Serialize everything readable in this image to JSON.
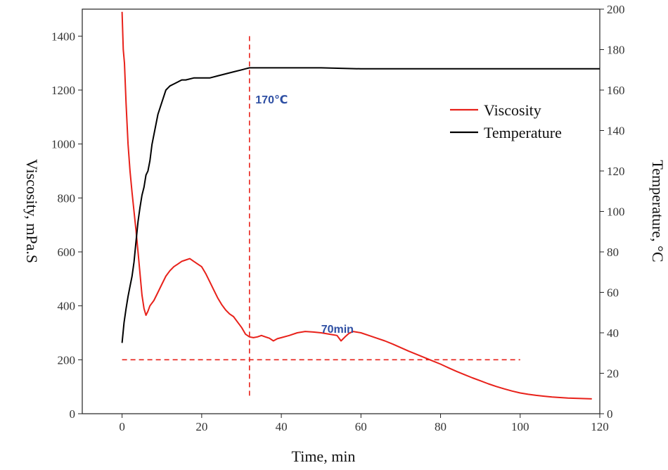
{
  "chart_data": {
    "type": "line",
    "title": "",
    "xlabel": "Time, min",
    "ylabel_left": "Viscosity, mPa.S",
    "ylabel_right": "Temperature, °C",
    "xlim": [
      -10,
      120
    ],
    "ylim_left": [
      0,
      1500
    ],
    "ylim_right": [
      0,
      200
    ],
    "xticks": [
      "0",
      "20",
      "40",
      "60",
      "80",
      "100",
      "120"
    ],
    "yticks_left": [
      "0",
      "200",
      "400",
      "600",
      "800",
      "1000",
      "1200",
      "1400"
    ],
    "yticks_right": [
      "0",
      "20",
      "40",
      "60",
      "80",
      "100",
      "120",
      "140",
      "160",
      "180",
      "200"
    ],
    "grid": false,
    "legend_position": "top-right",
    "series": [
      {
        "name": "Viscosity",
        "axis": "left",
        "color": "#e8211a",
        "x": [
          0,
          0.3,
          0.6,
          1.0,
          1.5,
          2.0,
          2.5,
          3.0,
          3.5,
          4.0,
          4.5,
          5.0,
          5.5,
          6.0,
          6.5,
          7.0,
          8.0,
          9.0,
          10.0,
          11.0,
          12.0,
          13.0,
          14.0,
          15.0,
          16.0,
          17.0,
          18.0,
          19.0,
          20.0,
          21.0,
          22.0,
          23.0,
          24.0,
          25.0,
          26.0,
          27.0,
          28.0,
          29.0,
          30.0,
          31.0,
          32.0,
          33.0,
          34.0,
          35.0,
          36.0,
          37.0,
          38.0,
          39.0,
          40.0,
          42.0,
          44.0,
          46.0,
          48.0,
          50.0,
          52.0,
          54.0,
          55.0,
          56.0,
          57.0,
          58.0,
          60.0,
          62.0,
          64.0,
          66.0,
          68.0,
          70.0,
          72.0,
          74.0,
          76.0,
          78.0,
          80.0,
          82.0,
          84.0,
          86.0,
          88.0,
          90.0,
          92.0,
          94.0,
          96.0,
          98.0,
          100.0,
          102.0,
          104.0,
          106.0,
          108.0,
          110.0,
          112.0,
          114.0,
          116.0,
          118.0
        ],
        "values": [
          1490,
          1350,
          1300,
          1150,
          1000,
          900,
          820,
          750,
          680,
          600,
          520,
          440,
          390,
          365,
          380,
          400,
          420,
          450,
          480,
          510,
          530,
          545,
          555,
          565,
          570,
          575,
          565,
          555,
          545,
          520,
          490,
          460,
          430,
          405,
          385,
          370,
          360,
          340,
          320,
          295,
          285,
          282,
          285,
          290,
          285,
          280,
          270,
          278,
          282,
          290,
          300,
          305,
          303,
          300,
          295,
          290,
          270,
          285,
          298,
          305,
          300,
          290,
          280,
          270,
          258,
          245,
          232,
          220,
          208,
          196,
          184,
          170,
          157,
          145,
          133,
          122,
          111,
          101,
          92,
          84,
          77,
          72,
          68,
          65,
          62,
          60,
          58,
          57,
          56,
          55
        ]
      },
      {
        "name": "Temperature",
        "axis": "right",
        "color": "#000000",
        "x": [
          0,
          0.5,
          1.0,
          1.5,
          2.0,
          2.5,
          3.0,
          3.5,
          4.0,
          4.5,
          5.0,
          5.5,
          6.0,
          6.5,
          7.0,
          7.5,
          8.0,
          9.0,
          10.0,
          11.0,
          12.0,
          13.0,
          14.0,
          15.0,
          16.0,
          18.0,
          20.0,
          22.0,
          24.0,
          26.0,
          28.0,
          30.0,
          31.0,
          32.0,
          35.0,
          40.0,
          50.0,
          60.0,
          70.0,
          80.0,
          90.0,
          100.0,
          110.0,
          120.0
        ],
        "values": [
          35,
          45,
          52,
          58,
          63,
          68,
          75,
          85,
          95,
          102,
          108,
          112,
          118,
          120,
          125,
          133,
          138,
          148,
          154,
          160,
          162,
          163,
          164,
          165,
          165,
          166,
          166,
          166,
          167,
          168,
          169,
          170,
          170.5,
          171,
          171,
          171,
          171,
          170.5,
          170.5,
          170.5,
          170.5,
          170.5,
          170.5,
          170.5
        ]
      }
    ],
    "reference_lines": [
      {
        "orientation": "vertical",
        "x": 32,
        "y_range": [
          60,
          1400
        ],
        "axis": "left",
        "color": "#e8211a"
      },
      {
        "orientation": "horizontal",
        "y": 200,
        "x_range": [
          0,
          100
        ],
        "axis": "left",
        "color": "#e8211a"
      }
    ],
    "annotations": [
      {
        "text": "170℃",
        "x": 33.5,
        "y": 1150,
        "axis": "left",
        "color": "#2e4fa3"
      },
      {
        "text": "70min",
        "x": 50,
        "y": 300,
        "axis": "left",
        "color": "#2e4fa3"
      }
    ]
  }
}
